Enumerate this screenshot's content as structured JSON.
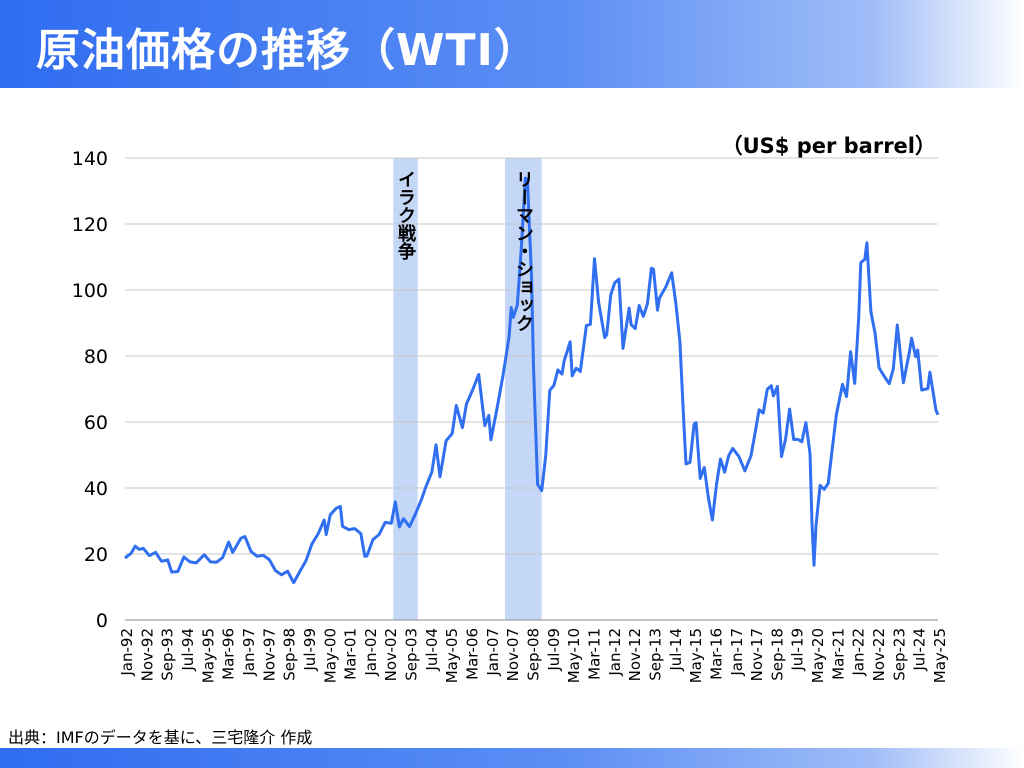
{
  "header": {
    "title": "原油価格の推移（WTI）"
  },
  "footer": {
    "source": "出典：IMFのデータを基に、三宅隆介 作成"
  },
  "chart_data": {
    "type": "line",
    "unit_label": "（US$ per barrel）",
    "ylim": [
      0,
      140
    ],
    "yticks": [
      0,
      20,
      40,
      60,
      80,
      100,
      120,
      140
    ],
    "grid": true,
    "x_range": [
      "1992-01",
      "2025-05"
    ],
    "xtick_labels": [
      "Jan-92",
      "Nov-92",
      "Sep-93",
      "Jul-94",
      "May-95",
      "Mar-96",
      "Jan-97",
      "Nov-97",
      "Sep-98",
      "Jul-99",
      "May-00",
      "Mar-01",
      "Jan-02",
      "Nov-02",
      "Sep-03",
      "Jul-04",
      "May-05",
      "Mar-06",
      "Jan-07",
      "Nov-07",
      "Sep-08",
      "Jul-09",
      "May-10",
      "Mar-11",
      "Jan-12",
      "Nov-12",
      "Sep-13",
      "Jul-14",
      "May-15",
      "Mar-16",
      "Jan-17",
      "Nov-17",
      "Sep-18",
      "Jul-19",
      "May-20",
      "Mar-21",
      "Jan-22",
      "Nov-22",
      "Sep-23",
      "Jul-24",
      "May-25"
    ],
    "line_color": "#2f6ff0",
    "shade_color": "#c5d7f7",
    "highlights": [
      {
        "label": "イラク戦争",
        "start": "2003-01",
        "end": "2004-01"
      },
      {
        "label": "リーマン・ショック",
        "start": "2007-08",
        "end": "2009-02"
      }
    ],
    "series": [
      {
        "points": [
          [
            "1992-01",
            18.8
          ],
          [
            "1992-04",
            20.2
          ],
          [
            "1992-06",
            22.4
          ],
          [
            "1992-08",
            21.4
          ],
          [
            "1992-10",
            21.7
          ],
          [
            "1993-01",
            19.5
          ],
          [
            "1993-04",
            20.5
          ],
          [
            "1993-07",
            17.8
          ],
          [
            "1993-10",
            18.2
          ],
          [
            "1993-12",
            14.5
          ],
          [
            "1994-03",
            14.7
          ],
          [
            "1994-06",
            19.1
          ],
          [
            "1994-09",
            17.6
          ],
          [
            "1994-12",
            17.3
          ],
          [
            "1995-04",
            19.8
          ],
          [
            "1995-07",
            17.6
          ],
          [
            "1995-10",
            17.5
          ],
          [
            "1996-01",
            18.9
          ],
          [
            "1996-04",
            23.6
          ],
          [
            "1996-06",
            20.5
          ],
          [
            "1996-10",
            24.8
          ],
          [
            "1996-12",
            25.3
          ],
          [
            "1997-03",
            20.8
          ],
          [
            "1997-06",
            19.3
          ],
          [
            "1997-09",
            19.6
          ],
          [
            "1997-12",
            18.3
          ],
          [
            "1998-03",
            15.0
          ],
          [
            "1998-06",
            13.7
          ],
          [
            "1998-09",
            14.8
          ],
          [
            "1998-12",
            11.3
          ],
          [
            "1999-03",
            14.7
          ],
          [
            "1999-06",
            17.9
          ],
          [
            "1999-09",
            23.1
          ],
          [
            "1999-12",
            26.1
          ],
          [
            "2000-03",
            30.3
          ],
          [
            "2000-04",
            25.9
          ],
          [
            "2000-06",
            31.9
          ],
          [
            "2000-09",
            33.9
          ],
          [
            "2000-11",
            34.4
          ],
          [
            "2000-12",
            28.4
          ],
          [
            "2001-03",
            27.4
          ],
          [
            "2001-06",
            27.7
          ],
          [
            "2001-09",
            26.2
          ],
          [
            "2001-11",
            19.3
          ],
          [
            "2001-12",
            19.4
          ],
          [
            "2002-03",
            24.4
          ],
          [
            "2002-06",
            25.9
          ],
          [
            "2002-09",
            29.6
          ],
          [
            "2002-12",
            29.3
          ],
          [
            "2003-02",
            35.8
          ],
          [
            "2003-04",
            28.2
          ],
          [
            "2003-06",
            30.7
          ],
          [
            "2003-09",
            28.3
          ],
          [
            "2003-12",
            32.2
          ],
          [
            "2004-03",
            36.7
          ],
          [
            "2004-05",
            40.3
          ],
          [
            "2004-08",
            44.9
          ],
          [
            "2004-10",
            53.1
          ],
          [
            "2004-12",
            43.4
          ],
          [
            "2005-03",
            54.3
          ],
          [
            "2005-06",
            56.5
          ],
          [
            "2005-08",
            65.0
          ],
          [
            "2005-11",
            58.3
          ],
          [
            "2006-01",
            65.5
          ],
          [
            "2006-04",
            69.7
          ],
          [
            "2006-07",
            74.4
          ],
          [
            "2006-10",
            58.9
          ],
          [
            "2006-12",
            62.0
          ],
          [
            "2007-01",
            54.6
          ],
          [
            "2007-04",
            63.9
          ],
          [
            "2007-07",
            74.1
          ],
          [
            "2007-10",
            85.8
          ],
          [
            "2007-11",
            94.7
          ],
          [
            "2007-12",
            91.7
          ],
          [
            "2008-02",
            95.4
          ],
          [
            "2008-04",
            112.6
          ],
          [
            "2008-06",
            133.9
          ],
          [
            "2008-07",
            133.4
          ],
          [
            "2008-09",
            104.1
          ],
          [
            "2008-10",
            76.6
          ],
          [
            "2008-12",
            41.1
          ],
          [
            "2009-02",
            39.2
          ],
          [
            "2009-04",
            49.7
          ],
          [
            "2009-06",
            69.6
          ],
          [
            "2009-08",
            71.1
          ],
          [
            "2009-10",
            75.8
          ],
          [
            "2009-12",
            74.5
          ],
          [
            "2010-01",
            78.3
          ],
          [
            "2010-04",
            84.3
          ],
          [
            "2010-05",
            74.0
          ],
          [
            "2010-07",
            76.3
          ],
          [
            "2010-09",
            75.3
          ],
          [
            "2010-12",
            89.2
          ],
          [
            "2011-02",
            89.6
          ],
          [
            "2011-04",
            109.5
          ],
          [
            "2011-06",
            96.3
          ],
          [
            "2011-09",
            85.6
          ],
          [
            "2011-10",
            86.4
          ],
          [
            "2011-12",
            98.6
          ],
          [
            "2012-02",
            102.2
          ],
          [
            "2012-04",
            103.3
          ],
          [
            "2012-06",
            82.3
          ],
          [
            "2012-09",
            94.5
          ],
          [
            "2012-10",
            89.5
          ],
          [
            "2012-12",
            88.3
          ],
          [
            "2013-02",
            95.3
          ],
          [
            "2013-04",
            92.0
          ],
          [
            "2013-06",
            95.8
          ],
          [
            "2013-08",
            106.6
          ],
          [
            "2013-09",
            106.3
          ],
          [
            "2013-11",
            93.9
          ],
          [
            "2013-12",
            97.6
          ],
          [
            "2014-03",
            100.8
          ],
          [
            "2014-06",
            105.2
          ],
          [
            "2014-08",
            96.1
          ],
          [
            "2014-10",
            84.4
          ],
          [
            "2014-12",
            59.3
          ],
          [
            "2015-01",
            47.3
          ],
          [
            "2015-03",
            47.8
          ],
          [
            "2015-05",
            59.3
          ],
          [
            "2015-06",
            59.8
          ],
          [
            "2015-08",
            42.9
          ],
          [
            "2015-10",
            46.2
          ],
          [
            "2015-12",
            37.2
          ],
          [
            "2016-02",
            30.3
          ],
          [
            "2016-04",
            41.1
          ],
          [
            "2016-06",
            48.8
          ],
          [
            "2016-08",
            44.8
          ],
          [
            "2016-10",
            49.8
          ],
          [
            "2016-12",
            52.0
          ],
          [
            "2017-03",
            49.6
          ],
          [
            "2017-06",
            45.2
          ],
          [
            "2017-09",
            49.8
          ],
          [
            "2017-11",
            56.7
          ],
          [
            "2018-01",
            63.7
          ],
          [
            "2018-03",
            62.7
          ],
          [
            "2018-05",
            69.9
          ],
          [
            "2018-07",
            71.0
          ],
          [
            "2018-08",
            67.9
          ],
          [
            "2018-10",
            70.8
          ],
          [
            "2018-12",
            49.5
          ],
          [
            "2019-02",
            54.9
          ],
          [
            "2019-04",
            63.9
          ],
          [
            "2019-06",
            54.7
          ],
          [
            "2019-08",
            54.8
          ],
          [
            "2019-10",
            54.0
          ],
          [
            "2019-12",
            59.8
          ],
          [
            "2020-02",
            50.5
          ],
          [
            "2020-03",
            29.2
          ],
          [
            "2020-04",
            16.6
          ],
          [
            "2020-05",
            28.6
          ],
          [
            "2020-07",
            40.8
          ],
          [
            "2020-09",
            39.6
          ],
          [
            "2020-11",
            41.4
          ],
          [
            "2021-01",
            52.0
          ],
          [
            "2021-03",
            62.3
          ],
          [
            "2021-06",
            71.4
          ],
          [
            "2021-08",
            67.7
          ],
          [
            "2021-10",
            81.3
          ],
          [
            "2021-12",
            71.7
          ],
          [
            "2022-02",
            91.6
          ],
          [
            "2022-03",
            108.3
          ],
          [
            "2022-05",
            109.3
          ],
          [
            "2022-06",
            114.3
          ],
          [
            "2022-08",
            93.4
          ],
          [
            "2022-10",
            87.0
          ],
          [
            "2022-12",
            76.4
          ],
          [
            "2023-03",
            73.4
          ],
          [
            "2023-05",
            71.6
          ],
          [
            "2023-07",
            76.1
          ],
          [
            "2023-09",
            89.4
          ],
          [
            "2023-11",
            77.4
          ],
          [
            "2023-12",
            71.9
          ],
          [
            "2024-03",
            81.3
          ],
          [
            "2024-04",
            85.4
          ],
          [
            "2024-06",
            79.8
          ],
          [
            "2024-07",
            81.8
          ],
          [
            "2024-09",
            69.7
          ],
          [
            "2024-12",
            70.1
          ],
          [
            "2025-01",
            75.1
          ],
          [
            "2025-04",
            63.5
          ],
          [
            "2025-05",
            62.2
          ]
        ]
      }
    ]
  }
}
